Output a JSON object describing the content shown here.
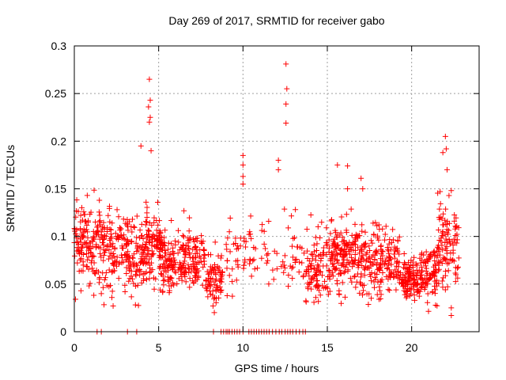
{
  "chart_data": {
    "type": "scatter",
    "title": "Day 269 of 2017, SRMTID for receiver gabo",
    "xlabel": "GPS time / hours",
    "ylabel": "SRMTID / TECUs",
    "xlim": [
      0,
      24
    ],
    "ylim": [
      0,
      0.3
    ],
    "xticks": [
      0,
      5,
      10,
      15,
      20
    ],
    "xtick_labels": [
      "0",
      "5",
      "10",
      "15",
      "20"
    ],
    "yticks": [
      0,
      0.05,
      0.1,
      0.15,
      0.2,
      0.25,
      0.3
    ],
    "ytick_labels": [
      "0",
      "0.05",
      "0.1",
      "0.15",
      "0.2",
      "0.25",
      "0.3"
    ],
    "grid": true,
    "marker": "+",
    "color": "#ff0000",
    "density_profile": [
      {
        "x_start": 0.0,
        "x_end": 1.0,
        "center": 0.095,
        "spread": 0.04,
        "count": 90
      },
      {
        "x_start": 1.0,
        "x_end": 2.2,
        "center": 0.09,
        "spread": 0.04,
        "count": 100
      },
      {
        "x_start": 2.2,
        "x_end": 3.2,
        "center": 0.085,
        "spread": 0.035,
        "count": 80
      },
      {
        "x_start": 3.2,
        "x_end": 4.2,
        "center": 0.08,
        "spread": 0.035,
        "count": 90
      },
      {
        "x_start": 4.2,
        "x_end": 5.2,
        "center": 0.09,
        "spread": 0.04,
        "count": 110
      },
      {
        "x_start": 5.2,
        "x_end": 6.5,
        "center": 0.075,
        "spread": 0.03,
        "count": 110
      },
      {
        "x_start": 6.5,
        "x_end": 7.8,
        "center": 0.075,
        "spread": 0.03,
        "count": 100
      },
      {
        "x_start": 7.8,
        "x_end": 8.8,
        "center": 0.055,
        "spread": 0.025,
        "count": 80
      },
      {
        "x_start": 9.0,
        "x_end": 9.8,
        "center": 0.075,
        "spread": 0.03,
        "count": 25
      },
      {
        "x_start": 9.8,
        "x_end": 11.5,
        "center": 0.085,
        "spread": 0.03,
        "count": 35
      },
      {
        "x_start": 11.5,
        "x_end": 13.7,
        "center": 0.08,
        "spread": 0.035,
        "count": 40
      },
      {
        "x_start": 13.7,
        "x_end": 15.2,
        "center": 0.07,
        "spread": 0.035,
        "count": 110
      },
      {
        "x_start": 15.2,
        "x_end": 16.5,
        "center": 0.08,
        "spread": 0.035,
        "count": 120
      },
      {
        "x_start": 16.5,
        "x_end": 18.0,
        "center": 0.075,
        "spread": 0.035,
        "count": 120
      },
      {
        "x_start": 18.0,
        "x_end": 19.3,
        "center": 0.075,
        "spread": 0.035,
        "count": 100
      },
      {
        "x_start": 19.3,
        "x_end": 20.4,
        "center": 0.055,
        "spread": 0.02,
        "count": 110
      },
      {
        "x_start": 20.4,
        "x_end": 21.5,
        "center": 0.06,
        "spread": 0.025,
        "count": 100
      },
      {
        "x_start": 21.5,
        "x_end": 22.8,
        "center": 0.09,
        "spread": 0.04,
        "count": 110
      }
    ],
    "notable_points": [
      {
        "x": 4.45,
        "y": 0.265
      },
      {
        "x": 4.5,
        "y": 0.243
      },
      {
        "x": 4.4,
        "y": 0.236
      },
      {
        "x": 4.5,
        "y": 0.225
      },
      {
        "x": 4.45,
        "y": 0.22
      },
      {
        "x": 3.95,
        "y": 0.195
      },
      {
        "x": 4.55,
        "y": 0.19
      },
      {
        "x": 12.55,
        "y": 0.281
      },
      {
        "x": 12.6,
        "y": 0.255
      },
      {
        "x": 12.55,
        "y": 0.239
      },
      {
        "x": 12.55,
        "y": 0.219
      },
      {
        "x": 12.1,
        "y": 0.18
      },
      {
        "x": 12.1,
        "y": 0.17
      },
      {
        "x": 10.0,
        "y": 0.185
      },
      {
        "x": 10.0,
        "y": 0.175
      },
      {
        "x": 10.0,
        "y": 0.163
      },
      {
        "x": 10.0,
        "y": 0.155
      },
      {
        "x": 22.0,
        "y": 0.205
      },
      {
        "x": 22.05,
        "y": 0.192
      },
      {
        "x": 21.85,
        "y": 0.188
      },
      {
        "x": 22.1,
        "y": 0.17
      },
      {
        "x": 16.2,
        "y": 0.174
      },
      {
        "x": 17.0,
        "y": 0.161
      },
      {
        "x": 15.6,
        "y": 0.175
      },
      {
        "x": 16.2,
        "y": 0.15
      },
      {
        "x": 17.1,
        "y": 0.15
      },
      {
        "x": 8.3,
        "y": 0.02
      },
      {
        "x": 22.35,
        "y": 0.017
      },
      {
        "x": 22.35,
        "y": 0.025
      },
      {
        "x": 2.3,
        "y": 0.027
      },
      {
        "x": 1.6,
        "y": 0.04
      }
    ],
    "zero_points_x": [
      1.35,
      1.6,
      3.15,
      3.7,
      8.25,
      8.7,
      8.85,
      9.0,
      9.1,
      9.2,
      9.35,
      9.5,
      9.65,
      9.8,
      10.0,
      10.35,
      10.5,
      10.65,
      10.8,
      10.95,
      11.1,
      11.25,
      11.4,
      11.55,
      11.75,
      11.95,
      12.15,
      12.3,
      12.5,
      12.65,
      12.8,
      12.95,
      13.15,
      13.35,
      13.55,
      13.7
    ]
  }
}
